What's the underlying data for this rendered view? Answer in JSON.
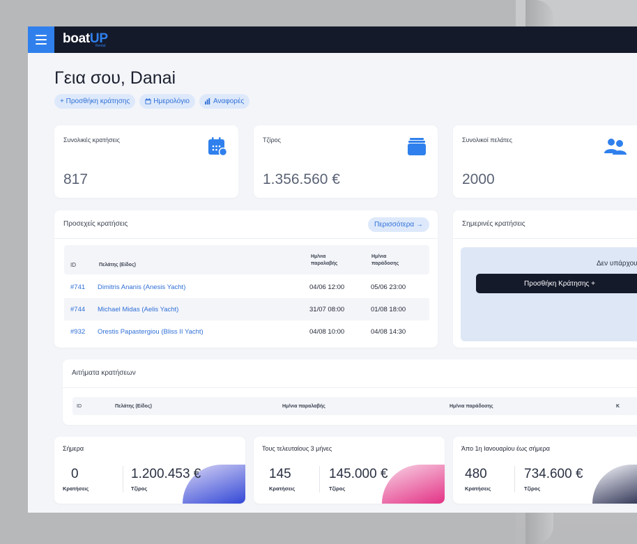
{
  "app": {
    "logo_main": "boat",
    "logo_accent": "UP",
    "logo_sub": "Rental"
  },
  "greeting": "Γεια σου, Danai",
  "quick_actions": [
    {
      "icon": "plus-icon",
      "label": "+ Προσθήκη κράτησης"
    },
    {
      "icon": "calendar-icon",
      "label": "Ημερολόγιο"
    },
    {
      "icon": "bar-chart-icon",
      "label": "Αναφορές"
    }
  ],
  "stats": [
    {
      "label": "Συνολικές κρατήσεις",
      "value": "817",
      "icon": "calendar-icon"
    },
    {
      "label": "Τζίρος",
      "value": "1.356.560 €",
      "icon": "wallet-icon"
    },
    {
      "label": "Συνολικοί πελάτες",
      "value": "2000",
      "icon": "users-icon"
    }
  ],
  "upcoming": {
    "title": "Προσεχείς κρατήσεις",
    "more_label": "Περισσότερα →",
    "headers": {
      "id": "ID",
      "client": "Πελάτης (Είδος)",
      "pickup": "Ημ/νια παραλαβής",
      "dropoff": "Ημ/νια παράδοσης"
    },
    "rows": [
      {
        "id": "#741",
        "client": "Dimitris Ananis (Anesis Yacht)",
        "pickup": "04/06 12:00",
        "dropoff": "05/06 23:00"
      },
      {
        "id": "#744",
        "client": "Michael Midas (Aelis Yacht)",
        "pickup": "31/07 08:00",
        "dropoff": "01/08 18:00"
      },
      {
        "id": "#932",
        "client": "Orestis Papastergiou (Bliss II Yacht)",
        "pickup": "04/08 10:00",
        "dropoff": "04/08 14:30"
      }
    ]
  },
  "today": {
    "title": "Σημερινές κρατήσεις",
    "empty_text": "Δεν υπάρχουν σ",
    "add_label": "Προσθήκη Κράτησης +"
  },
  "requests": {
    "title": "Αιτήματα κρατήσεων",
    "headers": {
      "id": "ID",
      "client": "Πελάτης (Είδος)",
      "pickup": "Ημ/νια παραλαβής",
      "dropoff": "Ημ/νια παράδοσης",
      "extra": "Κ"
    }
  },
  "summaries": [
    {
      "title": "Σήμερα",
      "bookings": "0",
      "bookings_label": "Κρατήσεις",
      "revenue": "1.200.453 €",
      "revenue_label": "Τζίρος",
      "color_a": "#c9c8f2",
      "color_b": "#3b4fd8"
    },
    {
      "title": "Τους τελευταίους 3 μήνες",
      "bookings": "145",
      "bookings_label": "Κρατήσεις",
      "revenue": "145.000 €",
      "revenue_label": "Τζίρος",
      "color_a": "#f6c6dd",
      "color_b": "#e43a8a"
    },
    {
      "title": "Άπο 1η Ιανουαρίου έως σήμερα",
      "bookings": "480",
      "bookings_label": "Κρατήσεις",
      "revenue": "734.600 €",
      "revenue_label": "Τζίρος",
      "color_a": "#e6e7ef",
      "color_b": "#2b3050"
    }
  ],
  "colors": {
    "accent": "#2f80ed",
    "topbar": "#151a2b",
    "link": "#2f6fd6"
  }
}
